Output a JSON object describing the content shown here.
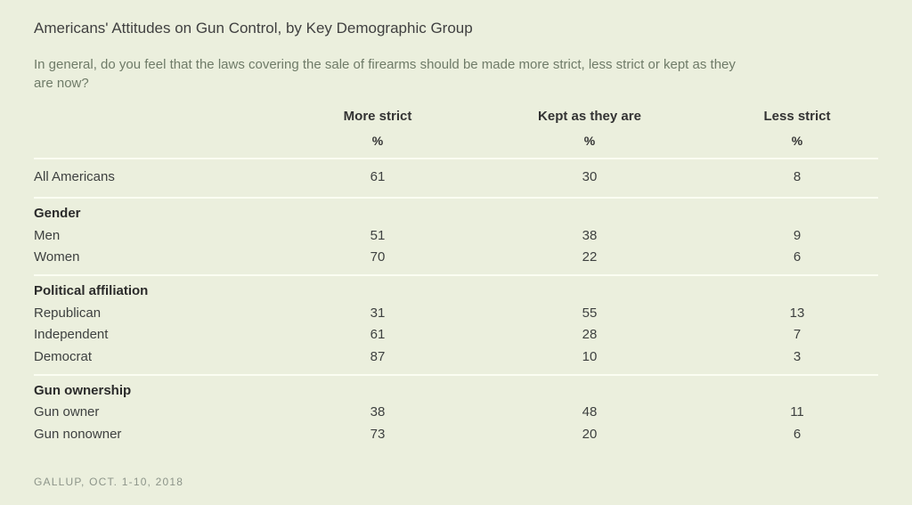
{
  "page": {
    "title": "Americans' Attitudes on Gun Control, by Key Demographic Group",
    "subtitle": "In general, do you feel that the laws covering the sale of firearms should be made more strict, less strict or kept as they are now?",
    "source": "GALLUP, OCT. 1-10, 2018"
  },
  "chart_data": {
    "type": "table",
    "title": "Americans' Attitudes on Gun Control, by Key Demographic Group",
    "question": "In general, do you feel that the laws covering the sale of firearms should be made more strict, less strict or kept as they are now?",
    "columns": [
      "More strict",
      "Kept as they are",
      "Less strict"
    ],
    "unit_row": [
      "%",
      "%",
      "%"
    ],
    "groups": [
      {
        "header": null,
        "rows": [
          {
            "label": "All Americans",
            "values": [
              61,
              30,
              8
            ]
          }
        ]
      },
      {
        "header": "Gender",
        "rows": [
          {
            "label": "Men",
            "values": [
              51,
              38,
              9
            ]
          },
          {
            "label": "Women",
            "values": [
              70,
              22,
              6
            ]
          }
        ]
      },
      {
        "header": "Political affiliation",
        "rows": [
          {
            "label": "Republican",
            "values": [
              31,
              55,
              13
            ]
          },
          {
            "label": "Independent",
            "values": [
              61,
              28,
              7
            ]
          },
          {
            "label": "Democrat",
            "values": [
              87,
              10,
              3
            ]
          }
        ]
      },
      {
        "header": "Gun ownership",
        "rows": [
          {
            "label": "Gun owner",
            "values": [
              38,
              48,
              11
            ]
          },
          {
            "label": "Gun nonowner",
            "values": [
              73,
              20,
              6
            ]
          }
        ]
      }
    ],
    "source": "GALLUP, OCT. 1-10, 2018"
  },
  "colors": {
    "bg": "#ebefdd",
    "sep": "#fbfdf2",
    "title": "#404040",
    "subtitle": "#6f7b68",
    "body-text": "#3e4140",
    "section-head": "#2b2b2b",
    "col-head": "#333333",
    "footer": "#8c9489"
  }
}
